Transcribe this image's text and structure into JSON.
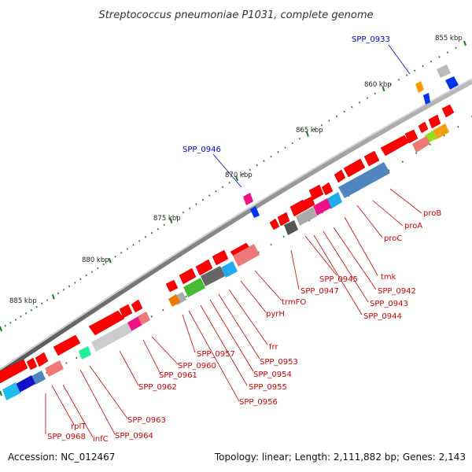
{
  "title": "Streptococcus pneumoniae P1031, complete genome",
  "footer": {
    "accession": "Accession: NC_012467",
    "summary": "Topology: linear; Length: 2,111,882 bp; Genes: 2,143"
  },
  "scale": {
    "unit": "kbp",
    "ticks": [
      "855 kbp",
      "860 kbp",
      "865 kbp",
      "870 kbp",
      "875 kbp",
      "880 kbp",
      "885 kbp"
    ]
  },
  "colors": {
    "backbone": "#8a8a8a",
    "gene_forward": "#ff0000",
    "label_red": "#cc0000",
    "label_blue": "#0000cc",
    "tick_green": "#1f7a1f"
  },
  "gene_labels": {
    "blue": [
      "SPP_0933",
      "SPP_0946"
    ],
    "red": [
      "proB",
      "proA",
      "proC",
      "tmk",
      "SPP_0942",
      "SPP_0943",
      "SPP_0944",
      "SPP_0945",
      "SPP_0947",
      "trmFO",
      "pyrH",
      "frr",
      "SPP_0953",
      "SPP_0954",
      "SPP_0955",
      "SPP_0956",
      "SPP_0957",
      "SPP_0960",
      "SPP_0961",
      "SPP_0962",
      "SPP_0963",
      "SPP_0964",
      "infC",
      "rplT",
      "SPP_0968"
    ]
  }
}
